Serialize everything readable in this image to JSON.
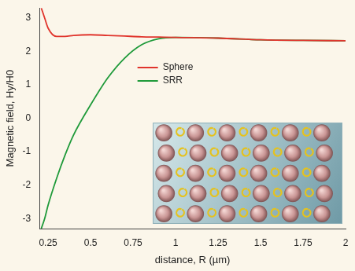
{
  "chart_data": {
    "type": "line",
    "xlabel": "distance, R (µm)",
    "ylabel": "Magnetic field, Hy/H0",
    "x": [
      0.21,
      0.23,
      0.25,
      0.3,
      0.35,
      0.4,
      0.5,
      0.6,
      0.7,
      0.8,
      0.9,
      1.0,
      1.25,
      1.5,
      1.75,
      2.0
    ],
    "series": [
      {
        "name": "Sphere",
        "color": "#e0342c",
        "marker": "none",
        "line_style": "solid",
        "values": [
          3.3,
          3.0,
          2.7,
          2.45,
          2.45,
          2.48,
          2.5,
          2.48,
          2.46,
          2.44,
          2.43,
          2.42,
          2.4,
          2.35,
          2.33,
          2.32
        ]
      },
      {
        "name": "SRR",
        "color": "#1f9a3a",
        "marker": "none",
        "line_style": "solid",
        "values": [
          -3.3,
          -3.0,
          -2.6,
          -1.8,
          -1.1,
          -0.5,
          0.4,
          1.2,
          1.8,
          2.2,
          2.38,
          2.42,
          2.4,
          2.35,
          2.33,
          2.32
        ]
      }
    ],
    "xlim": [
      0.2,
      2.0
    ],
    "xticks": [
      0.25,
      0.5,
      0.75,
      1,
      1.25,
      1.5,
      1.75,
      2
    ],
    "ylim": [
      -3.3,
      3.3
    ],
    "yticks": [
      -3,
      -2,
      -1,
      0,
      1,
      2,
      3
    ],
    "grid": false,
    "legend": "top"
  }
}
